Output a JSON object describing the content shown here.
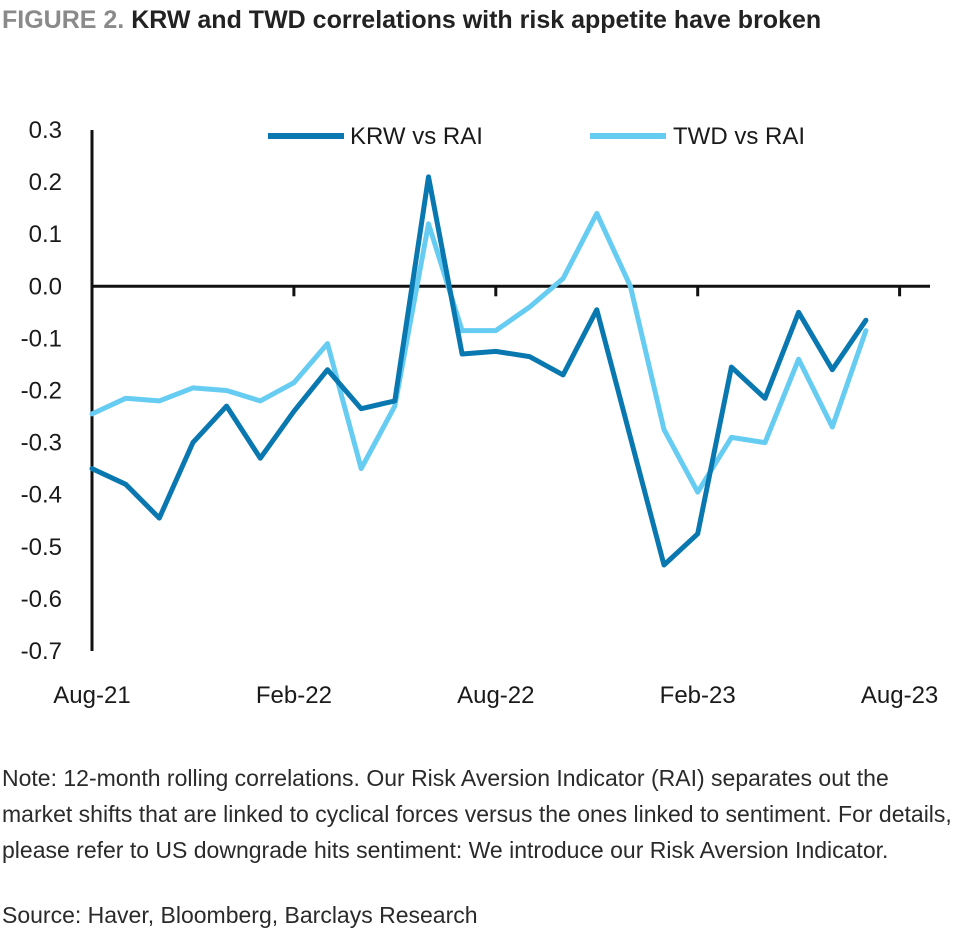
{
  "figure": {
    "label": "FIGURE 2.",
    "title": "KRW and TWD correlations with risk appetite have broken",
    "note": "Note: 12-month rolling correlations. Our Risk Aversion Indicator (RAI) separates out the market shifts that are linked to cyclical forces versus the ones linked to sentiment. For details, please refer to US downgrade hits sentiment: We introduce our Risk Aversion Indicator.",
    "source": "Source: Haver, Bloomberg, Barclays Research"
  },
  "colors": {
    "krw": "#0a78b0",
    "twd": "#66ccf2",
    "axis": "#111111"
  },
  "chart_data": {
    "type": "line",
    "x": [
      "Aug-21",
      "Sep-21",
      "Oct-21",
      "Nov-21",
      "Dec-21",
      "Jan-22",
      "Feb-22",
      "Mar-22",
      "Apr-22",
      "May-22",
      "Jun-22",
      "Jul-22",
      "Aug-22",
      "Sep-22",
      "Oct-22",
      "Nov-22",
      "Dec-22",
      "Jan-23",
      "Feb-23",
      "Mar-23",
      "Apr-23",
      "May-23",
      "Jun-23",
      "Jul-23"
    ],
    "x_tick_labels": [
      "Aug-21",
      "Feb-22",
      "Aug-22",
      "Feb-23",
      "Aug-23"
    ],
    "ylim": [
      -0.7,
      0.3
    ],
    "y_ticks": [
      "0.3",
      "0.2",
      "0.1",
      "0.0",
      "-0.1",
      "-0.2",
      "-0.3",
      "-0.4",
      "-0.5",
      "-0.6",
      "-0.7"
    ],
    "legend_position": "top",
    "grid": false,
    "series": [
      {
        "name": "KRW vs RAI",
        "values": [
          -0.35,
          -0.38,
          -0.445,
          -0.3,
          -0.23,
          -0.33,
          -0.24,
          -0.16,
          -0.235,
          -0.22,
          0.21,
          -0.13,
          -0.125,
          -0.135,
          -0.17,
          -0.045,
          -0.29,
          -0.535,
          -0.475,
          -0.155,
          -0.215,
          -0.05,
          -0.16,
          -0.065
        ]
      },
      {
        "name": "TWD vs RAI",
        "values": [
          -0.245,
          -0.215,
          -0.22,
          -0.195,
          -0.2,
          -0.22,
          -0.185,
          -0.11,
          -0.35,
          -0.23,
          0.12,
          -0.085,
          -0.085,
          -0.04,
          0.015,
          0.14,
          0.0,
          -0.275,
          -0.395,
          -0.29,
          -0.3,
          -0.14,
          -0.27,
          -0.085
        ]
      }
    ]
  }
}
